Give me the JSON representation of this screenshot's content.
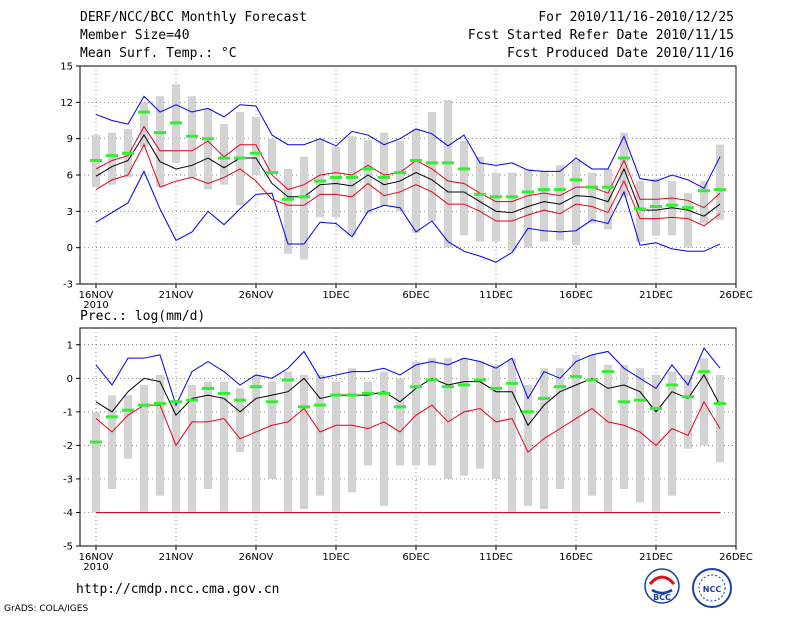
{
  "header": {
    "left": [
      "DERF/NCC/BCC Monthly Forecast",
      "Member Size=40",
      "Mean Surf. Temp.: °C"
    ],
    "right": [
      "For 2010/11/16-2010/12/25",
      "Fcst Started Refer Date 2010/11/15",
      "Fcst Produced Date 2010/11/16"
    ]
  },
  "prec_label": "Prec.: log(mm/d)",
  "url": "http://cmdp.ncc.cma.gov.cn",
  "grads": "GrADS: COLA/IGES",
  "logos": {
    "left": "BCC",
    "right": "NCC"
  },
  "colors": {
    "max": "#0000ee",
    "min": "#0000ee",
    "upper": "#e8001c",
    "lower": "#e8001c",
    "mean": "#000000",
    "box": "#d3d3d3",
    "obs": "#33ee33"
  },
  "x_labels": [
    "16NOV",
    "21NOV",
    "26NOV",
    "1DEC",
    "6DEC",
    "11DEC",
    "16DEC",
    "21DEC",
    "26DEC"
  ],
  "x_year": "2010",
  "chart_data": [
    {
      "type": "line",
      "title": "Mean Surf. Temp.: °C",
      "ylim": [
        -3,
        15
      ],
      "yticks": [
        "15",
        "12",
        "9",
        "6",
        "3",
        "0",
        "-3"
      ],
      "ytick_values": [
        15,
        12,
        9,
        6,
        3,
        0,
        -3
      ],
      "days": 40,
      "max": [
        11,
        10.5,
        10.2,
        12.5,
        11.2,
        11.8,
        11.2,
        11.5,
        10.8,
        11.8,
        11.7,
        9.3,
        8.5,
        8.5,
        9,
        8.4,
        9.6,
        9.3,
        8.5,
        9,
        9.8,
        9.4,
        8.4,
        9.3,
        7,
        6.8,
        7,
        6.4,
        6.3,
        6.3,
        7.4,
        6.5,
        6.5,
        9.2,
        5.7,
        5.5,
        6,
        5.6,
        4.9,
        7.5
      ],
      "upper": [
        6.5,
        7.2,
        7.6,
        10,
        8,
        8,
        8,
        8.8,
        7.5,
        8.5,
        8.5,
        6,
        4.8,
        5.2,
        6,
        6.2,
        6,
        6.8,
        6,
        6.2,
        7.2,
        6.5,
        5.5,
        5.3,
        4.5,
        3.8,
        3.8,
        4.3,
        4.5,
        4.3,
        5,
        5,
        4.5,
        7.2,
        4,
        4,
        4.1,
        3.9,
        3.3,
        4.5
      ],
      "mean": [
        5.9,
        6.7,
        7.2,
        9.3,
        7.1,
        6.5,
        6.8,
        7.4,
        6.6,
        7.4,
        7.4,
        5.3,
        4.2,
        4.2,
        5.2,
        5.3,
        5.1,
        6,
        5.2,
        5.5,
        6.2,
        5.6,
        4.6,
        4.6,
        3.8,
        3,
        2.9,
        3.4,
        3.8,
        3.6,
        4.3,
        4.2,
        3.8,
        6.5,
        3.1,
        3.1,
        3.3,
        3.1,
        2.6,
        3.6
      ],
      "lower": [
        4.8,
        5.6,
        6,
        8.5,
        5,
        5.5,
        5.8,
        5.3,
        5.8,
        6.5,
        5.5,
        4,
        3.5,
        3.5,
        4.4,
        4.4,
        4.2,
        5.3,
        4.3,
        4.6,
        5.2,
        4.6,
        3.6,
        3.6,
        3,
        2.2,
        2.2,
        2.7,
        3.1,
        2.8,
        3.6,
        3.4,
        2.9,
        5.5,
        2.4,
        2.4,
        2.5,
        2.4,
        1.8,
        2.8
      ],
      "min": [
        2.1,
        2.9,
        3.7,
        6.3,
        3.2,
        0.6,
        1.3,
        3,
        1.9,
        3.2,
        4.4,
        4.5,
        0.3,
        0.3,
        2.1,
        2,
        0.9,
        3,
        3.5,
        3.3,
        1.3,
        2.2,
        0.5,
        -0.3,
        -0.7,
        -1.2,
        -0.4,
        1.6,
        1.4,
        1.3,
        1.4,
        2.3,
        2,
        4.6,
        0.2,
        0.4,
        -0.1,
        -0.3,
        -0.3,
        0.3
      ],
      "box_top": [
        9.3,
        9.5,
        9.8,
        12,
        12.5,
        13.5,
        12.5,
        11.5,
        10.2,
        11.2,
        10.8,
        9,
        6.5,
        7.5,
        9,
        8.3,
        9.2,
        8.9,
        9.5,
        8.8,
        9.8,
        11.2,
        12.2,
        8.8,
        7.5,
        6.2,
        6.2,
        6.5,
        6.3,
        6.8,
        7.2,
        6.2,
        6.5,
        9.5,
        5.5,
        5.7,
        5.5,
        4.5,
        5.5,
        8.5
      ],
      "box_bottom": [
        5,
        5.2,
        5.8,
        8.3,
        5,
        7,
        5.8,
        4.8,
        5.2,
        3.5,
        6,
        6.2,
        -0.5,
        -1,
        2.5,
        2.5,
        1,
        2.8,
        3.5,
        3,
        1.2,
        2.2,
        0,
        1,
        0.5,
        0.5,
        -0.3,
        0,
        0.5,
        0.6,
        0.2,
        2,
        1.5,
        4.2,
        0.5,
        1,
        1,
        0,
        2,
        2.3
      ],
      "obs": [
        7.2,
        7.6,
        7.8,
        11.2,
        9.5,
        10.3,
        9.2,
        9.0,
        7.4,
        7.4,
        7.8,
        6.2,
        4.0,
        4.2,
        5.5,
        5.8,
        5.8,
        6.5,
        5.8,
        6.2,
        7.2,
        7.0,
        7.0,
        6.5,
        4.4,
        4.2,
        4.2,
        4.6,
        4.8,
        4.8,
        5.6,
        5.0,
        5.0,
        7.4,
        3.2,
        3.4,
        3.5,
        3.3,
        4.7,
        4.8
      ]
    },
    {
      "type": "line",
      "title": "Prec.: log(mm/d)",
      "ylim": [
        -5,
        1.5
      ],
      "yticks": [
        "1",
        "0",
        "-1",
        "-2",
        "-3",
        "-4",
        "-5"
      ],
      "ytick_values": [
        1,
        0,
        -1,
        -2,
        -3,
        -4,
        -5
      ],
      "days": 40,
      "max": [
        0.4,
        -0.2,
        0.6,
        0.6,
        0.7,
        -0.8,
        0.2,
        0.5,
        0.2,
        -0.2,
        0.1,
        0,
        0.3,
        0.8,
        0,
        0.1,
        0.2,
        0.2,
        0.3,
        0.1,
        0.4,
        0.5,
        0.4,
        0.6,
        0.5,
        0.3,
        0.6,
        -0.6,
        0.2,
        0,
        0.5,
        0.7,
        0.8,
        0.3,
        0,
        -0.3,
        0.4,
        -0.2,
        0.9,
        0.3
      ],
      "mean": [
        -0.7,
        -1,
        -0.4,
        0,
        -0.1,
        -1.1,
        -0.6,
        -0.5,
        -0.6,
        -1,
        -0.6,
        -0.5,
        -0.4,
        0,
        -0.6,
        -0.5,
        -0.5,
        -0.5,
        -0.4,
        -0.7,
        -0.3,
        0,
        -0.2,
        -0.1,
        -0.1,
        -0.4,
        -0.4,
        -1.4,
        -0.8,
        -0.4,
        -0.2,
        0,
        -0.3,
        -0.2,
        -0.4,
        -1,
        -0.4,
        -0.6,
        0.1,
        -0.8
      ],
      "lower": [
        -1.2,
        -1.6,
        -1.1,
        -0.8,
        -0.8,
        -2,
        -1.3,
        -1.3,
        -1.2,
        -1.8,
        -1.6,
        -1.4,
        -1.3,
        -0.9,
        -1.6,
        -1.4,
        -1.4,
        -1.5,
        -1.3,
        -1.6,
        -1.1,
        -0.8,
        -1.3,
        -1,
        -0.9,
        -1.3,
        -1.2,
        -2.2,
        -1.8,
        -1.5,
        -1.2,
        -0.9,
        -1.3,
        -1.4,
        -1.6,
        -2,
        -1.5,
        -1.7,
        -0.7,
        -1.5
      ],
      "min": [
        -4,
        -4,
        -4,
        -4,
        -4,
        -4,
        -4,
        -4,
        -4,
        -4,
        -4,
        -4,
        -4,
        -4,
        -4,
        -4,
        -4,
        -4,
        -4,
        -4,
        -4,
        -4,
        -4,
        -4,
        -4,
        -4,
        -4,
        -4,
        -4,
        -4,
        -4,
        -4,
        -4,
        -4,
        -4,
        -4,
        -4,
        -4,
        -4,
        -4
      ],
      "box_top": [
        -1,
        -0.5,
        -0.5,
        -0.2,
        0.1,
        -0.7,
        -0.2,
        -0.1,
        -0.1,
        -0.3,
        0.1,
        -0.1,
        0.2,
        0.1,
        0.1,
        -0.1,
        0.3,
        -0.1,
        0.2,
        0,
        0.5,
        0.6,
        0.6,
        0.6,
        0.5,
        0.4,
        0.6,
        -0.2,
        0.3,
        0.3,
        0.7,
        0.7,
        0.4,
        0.4,
        0.3,
        0.1,
        0.2,
        0.1,
        0.6,
        0.1
      ],
      "box_bottom": [
        -4,
        -3.3,
        -2.4,
        -4,
        -3.5,
        -4,
        -4,
        -3.3,
        -4,
        -2.2,
        -4,
        -3,
        -4,
        -3.9,
        -3.5,
        -4,
        -3.4,
        -2.6,
        -3.8,
        -2.6,
        -2.6,
        -2.6,
        -3,
        -2.9,
        -2.7,
        -3,
        -4,
        -3.8,
        -3.9,
        -3.3,
        -4,
        -3.5,
        -4,
        -3.3,
        -3.7,
        -4,
        -3.5,
        -2.1,
        -2,
        -2.5
      ],
      "obs": [
        -1.9,
        -1.15,
        -0.95,
        -0.8,
        -0.75,
        -0.7,
        -0.65,
        -0.3,
        -0.45,
        -0.65,
        -0.25,
        -0.7,
        -0.05,
        -0.85,
        -0.8,
        -0.5,
        -0.5,
        -0.45,
        -0.45,
        -0.85,
        -0.25,
        -0.05,
        -0.25,
        -0.2,
        -0.05,
        -0.3,
        -0.15,
        -1.0,
        -0.6,
        -0.25,
        0.05,
        -0.05,
        0.2,
        -0.7,
        -0.65,
        -0.9,
        -0.2,
        -0.55,
        0.2,
        -0.75
      ]
    }
  ]
}
